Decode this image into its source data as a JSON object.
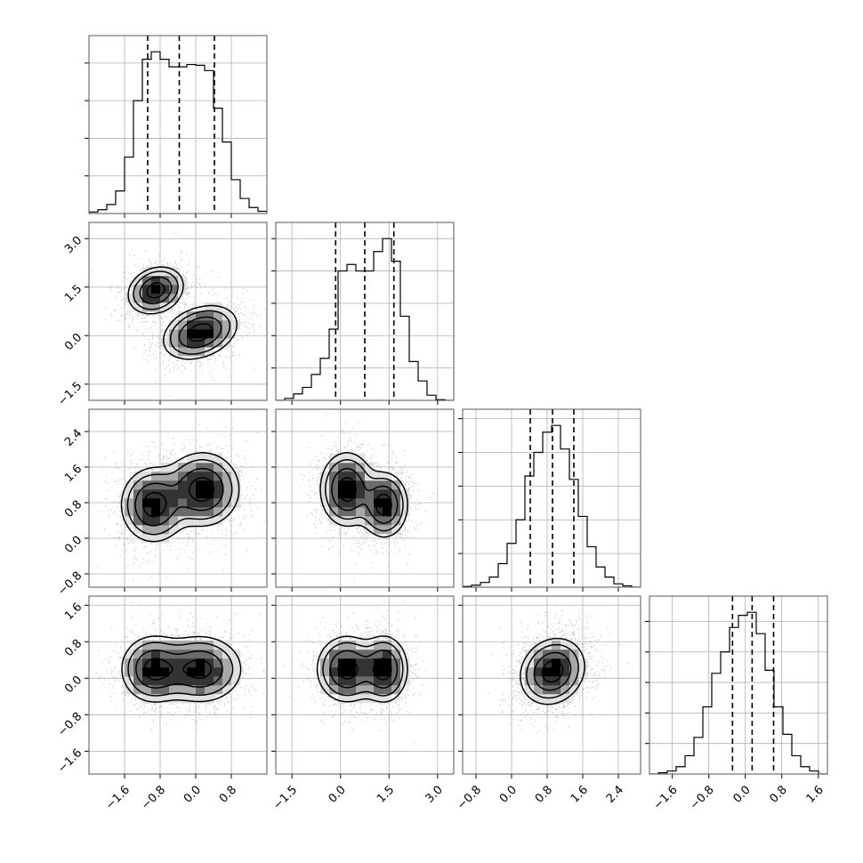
{
  "chart_data": {
    "type": "corner",
    "n_params": 4,
    "quantiles": [
      0.16,
      0.5,
      0.84
    ],
    "params": [
      {
        "index": 0,
        "range": [
          -2.4,
          1.6
        ],
        "ticks": [
          -1.6,
          -0.8,
          0.0,
          0.8
        ],
        "tick_labels": [
          "−1.6",
          "−0.8",
          "0.0",
          "0.8"
        ],
        "quantile_values": [
          -1.08,
          -0.37,
          0.42
        ]
      },
      {
        "index": 1,
        "range": [
          -2.0,
          3.5
        ],
        "ticks": [
          -1.5,
          0.0,
          1.5,
          3.0
        ],
        "tick_labels": [
          "−1.5",
          "0.0",
          "1.5",
          "3.0"
        ],
        "quantile_values": [
          -0.15,
          0.75,
          1.65
        ]
      },
      {
        "index": 2,
        "range": [
          -1.1,
          2.9
        ],
        "ticks": [
          -0.8,
          0.0,
          0.8,
          1.6,
          2.4
        ],
        "tick_labels": [
          "−0.8",
          "0.0",
          "0.8",
          "1.6",
          "2.4"
        ],
        "quantile_values": [
          0.42,
          0.92,
          1.4
        ]
      },
      {
        "index": 3,
        "range": [
          -2.1,
          1.8
        ],
        "ticks": [
          -1.6,
          -0.8,
          0.0,
          0.8,
          1.6
        ],
        "tick_labels": [
          "−1.6",
          "−0.8",
          "0.0",
          "0.8",
          "1.6"
        ],
        "quantile_values": [
          -0.28,
          0.15,
          0.62
        ]
      }
    ],
    "histograms": [
      {
        "param": 0,
        "edges": [
          -2.4,
          -2.2,
          -2.0,
          -1.8,
          -1.6,
          -1.4,
          -1.2,
          -1.0,
          -0.8,
          -0.6,
          -0.4,
          -0.2,
          0.0,
          0.2,
          0.4,
          0.6,
          0.8,
          1.0,
          1.2,
          1.4,
          1.6
        ],
        "counts": [
          2,
          5,
          12,
          30,
          75,
          150,
          205,
          215,
          205,
          195,
          195,
          198,
          197,
          190,
          140,
          95,
          45,
          20,
          8,
          3
        ]
      },
      {
        "param": 1,
        "edges": [
          -2.0,
          -1.725,
          -1.45,
          -1.175,
          -0.9,
          -0.625,
          -0.35,
          -0.075,
          0.2,
          0.475,
          0.75,
          1.025,
          1.3,
          1.575,
          1.85,
          2.125,
          2.4,
          2.675,
          2.95,
          3.225,
          3.5
        ],
        "counts": [
          0,
          3,
          10,
          20,
          40,
          65,
          110,
          200,
          210,
          200,
          200,
          230,
          250,
          215,
          130,
          60,
          30,
          8,
          1,
          0
        ]
      },
      {
        "param": 2,
        "edges": [
          -1.1,
          -0.9,
          -0.7,
          -0.5,
          -0.3,
          -0.1,
          0.1,
          0.3,
          0.5,
          0.7,
          0.9,
          1.1,
          1.3,
          1.5,
          1.7,
          1.9,
          2.1,
          2.3,
          2.5,
          2.7,
          2.9
        ],
        "counts": [
          1,
          3,
          7,
          15,
          35,
          65,
          100,
          165,
          200,
          230,
          240,
          205,
          160,
          105,
          60,
          30,
          15,
          5,
          2,
          0
        ]
      },
      {
        "param": 3,
        "edges": [
          -2.1,
          -1.905,
          -1.71,
          -1.515,
          -1.32,
          -1.125,
          -0.93,
          -0.735,
          -0.54,
          -0.345,
          -0.15,
          0.045,
          0.24,
          0.435,
          0.63,
          0.825,
          1.02,
          1.215,
          1.41,
          1.605,
          1.8
        ],
        "counts": [
          0,
          2,
          5,
          12,
          30,
          60,
          110,
          165,
          200,
          240,
          260,
          265,
          230,
          170,
          110,
          65,
          30,
          12,
          5,
          0
        ]
      }
    ],
    "pair_densities": [
      {
        "x_param": 0,
        "y_param": 1,
        "modes": [
          {
            "mean": [
              -0.9,
              1.4
            ],
            "sd": [
              0.3,
              0.35
            ],
            "rho": 0.2,
            "weight": 1.0
          },
          {
            "mean": [
              0.1,
              0.1
            ],
            "sd": [
              0.4,
              0.4
            ],
            "rho": 0.3,
            "weight": 1.0
          }
        ]
      },
      {
        "x_param": 0,
        "y_param": 2,
        "modes": [
          {
            "mean": [
              -0.95,
              0.75
            ],
            "sd": [
              0.35,
              0.4
            ],
            "rho": 0.0,
            "weight": 1.0
          },
          {
            "mean": [
              0.15,
              1.1
            ],
            "sd": [
              0.4,
              0.4
            ],
            "rho": 0.0,
            "weight": 1.0
          }
        ]
      },
      {
        "x_param": 0,
        "y_param": 3,
        "modes": [
          {
            "mean": [
              -0.95,
              0.2
            ],
            "sd": [
              0.35,
              0.35
            ],
            "rho": 0.0,
            "weight": 1.0
          },
          {
            "mean": [
              0.1,
              0.2
            ],
            "sd": [
              0.45,
              0.35
            ],
            "rho": 0.0,
            "weight": 1.0
          }
        ]
      },
      {
        "x_param": 1,
        "y_param": 2,
        "modes": [
          {
            "mean": [
              0.2,
              1.1
            ],
            "sd": [
              0.4,
              0.4
            ],
            "rho": 0.0,
            "weight": 1.0
          },
          {
            "mean": [
              1.35,
              0.75
            ],
            "sd": [
              0.35,
              0.35
            ],
            "rho": 0.0,
            "weight": 1.0
          }
        ]
      },
      {
        "x_param": 1,
        "y_param": 3,
        "modes": [
          {
            "mean": [
              0.2,
              0.2
            ],
            "sd": [
              0.45,
              0.35
            ],
            "rho": 0.0,
            "weight": 1.0
          },
          {
            "mean": [
              1.35,
              0.2
            ],
            "sd": [
              0.35,
              0.35
            ],
            "rho": 0.0,
            "weight": 1.0
          }
        ]
      },
      {
        "x_param": 2,
        "y_param": 3,
        "modes": [
          {
            "mean": [
              0.92,
              0.15
            ],
            "sd": [
              0.35,
              0.35
            ],
            "rho": 0.15,
            "weight": 1.0
          }
        ]
      }
    ],
    "grid": true,
    "colors": {
      "points": "#888888",
      "density": "#000000",
      "lines": "#000000"
    }
  }
}
